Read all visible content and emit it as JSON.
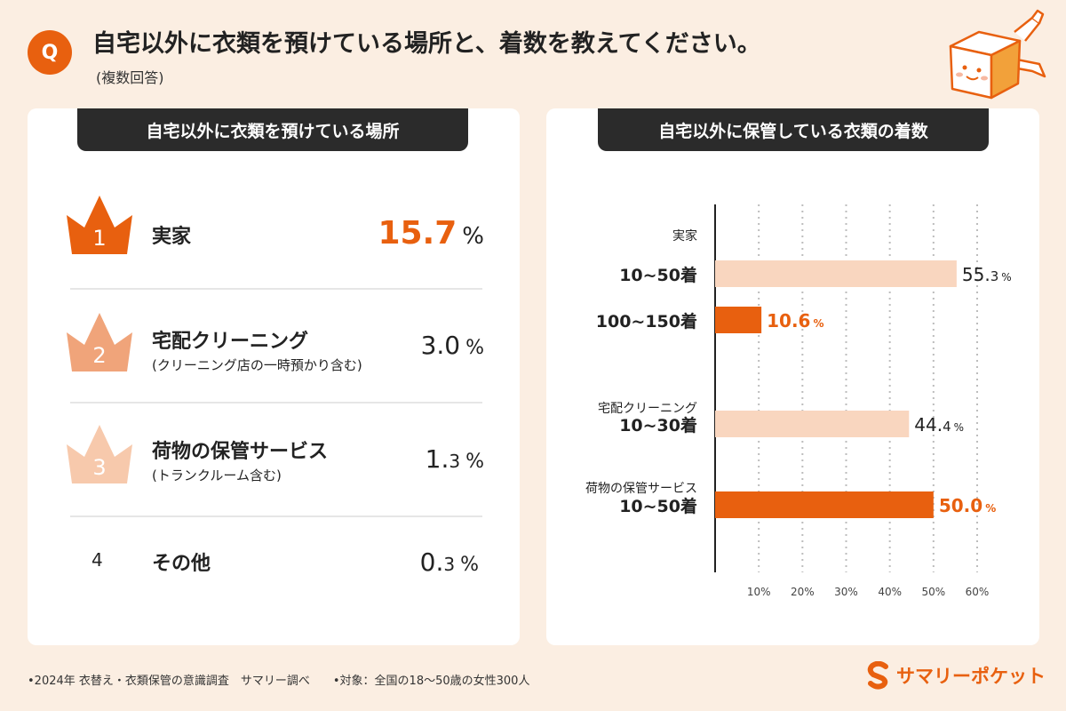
{
  "header": {
    "q_label": "Q",
    "question": "自宅以外に衣類を預けている場所と、着数を教えてください。",
    "sub": "(複数回答)"
  },
  "left_panel": {
    "title": "自宅以外に衣類を預けている場所",
    "ranks": [
      {
        "rank": "1",
        "name": "実家",
        "note": "",
        "pct_int": "15.7",
        "pct_dec": "",
        "pct_sym": "%",
        "accent": true,
        "crown_color": "#e8600f"
      },
      {
        "rank": "2",
        "name": "宅配クリーニング",
        "note": "(クリーニング店の一時預かり含む)",
        "pct_int": "3.0",
        "pct_dec": "",
        "pct_sym": "%",
        "accent": false,
        "crown_color": "#f0a47a"
      },
      {
        "rank": "3",
        "name": "荷物の保管サービス",
        "note": "(トランクルーム含む)",
        "pct_int": "1.",
        "pct_dec": "3",
        "pct_sym": "%",
        "accent": false,
        "crown_color": "#f7c9ac"
      },
      {
        "rank": "4",
        "name": "その他",
        "note": "",
        "pct_int": "0.",
        "pct_dec": "3",
        "pct_sym": "%",
        "accent": false,
        "crown_color": ""
      }
    ]
  },
  "right_panel": {
    "title": "自宅以外に保管している衣類の着数"
  },
  "chart_data": {
    "type": "bar",
    "orientation": "horizontal",
    "xlim": [
      0,
      60
    ],
    "xticks": [
      "10%",
      "20%",
      "30%",
      "40%",
      "50%",
      "60%"
    ],
    "xtick_values": [
      10,
      20,
      30,
      40,
      50,
      60
    ],
    "grid": "vertical dotted",
    "groups": [
      {
        "label": "実家",
        "bars": [
          {
            "label": "10~50着",
            "value": 55.3,
            "display_int": "55.",
            "display_dec": "3",
            "color": "#f9d6bf",
            "highlight": false
          },
          {
            "label": "100~150着",
            "value": 10.6,
            "display_int": "10.6",
            "display_dec": "",
            "color": "#e8600f",
            "highlight": true
          }
        ]
      },
      {
        "label": "宅配クリーニング",
        "bars": [
          {
            "label": "10~30着",
            "value": 44.4,
            "display_int": "44.",
            "display_dec": "4",
            "color": "#f9d6bf",
            "highlight": false
          }
        ]
      },
      {
        "label": "荷物の保管サービス",
        "bars": [
          {
            "label": "10~50着",
            "value": 50.0,
            "display_int": "50.0",
            "display_dec": "",
            "color": "#e8600f",
            "highlight": true
          }
        ]
      }
    ],
    "unit": "%"
  },
  "footer": {
    "survey": "•2024年 衣替え・衣類保管の意識調査　サマリー調べ",
    "target": "•対象：全国の18〜50歳の女性300人"
  },
  "logo": {
    "text": "サマリーポケット",
    "icon": "s-logo-icon"
  },
  "colors": {
    "accent": "#e8600f",
    "background": "#fbeee2",
    "pale_bar": "#f9d6bf",
    "dark": "#2b2b2b"
  }
}
